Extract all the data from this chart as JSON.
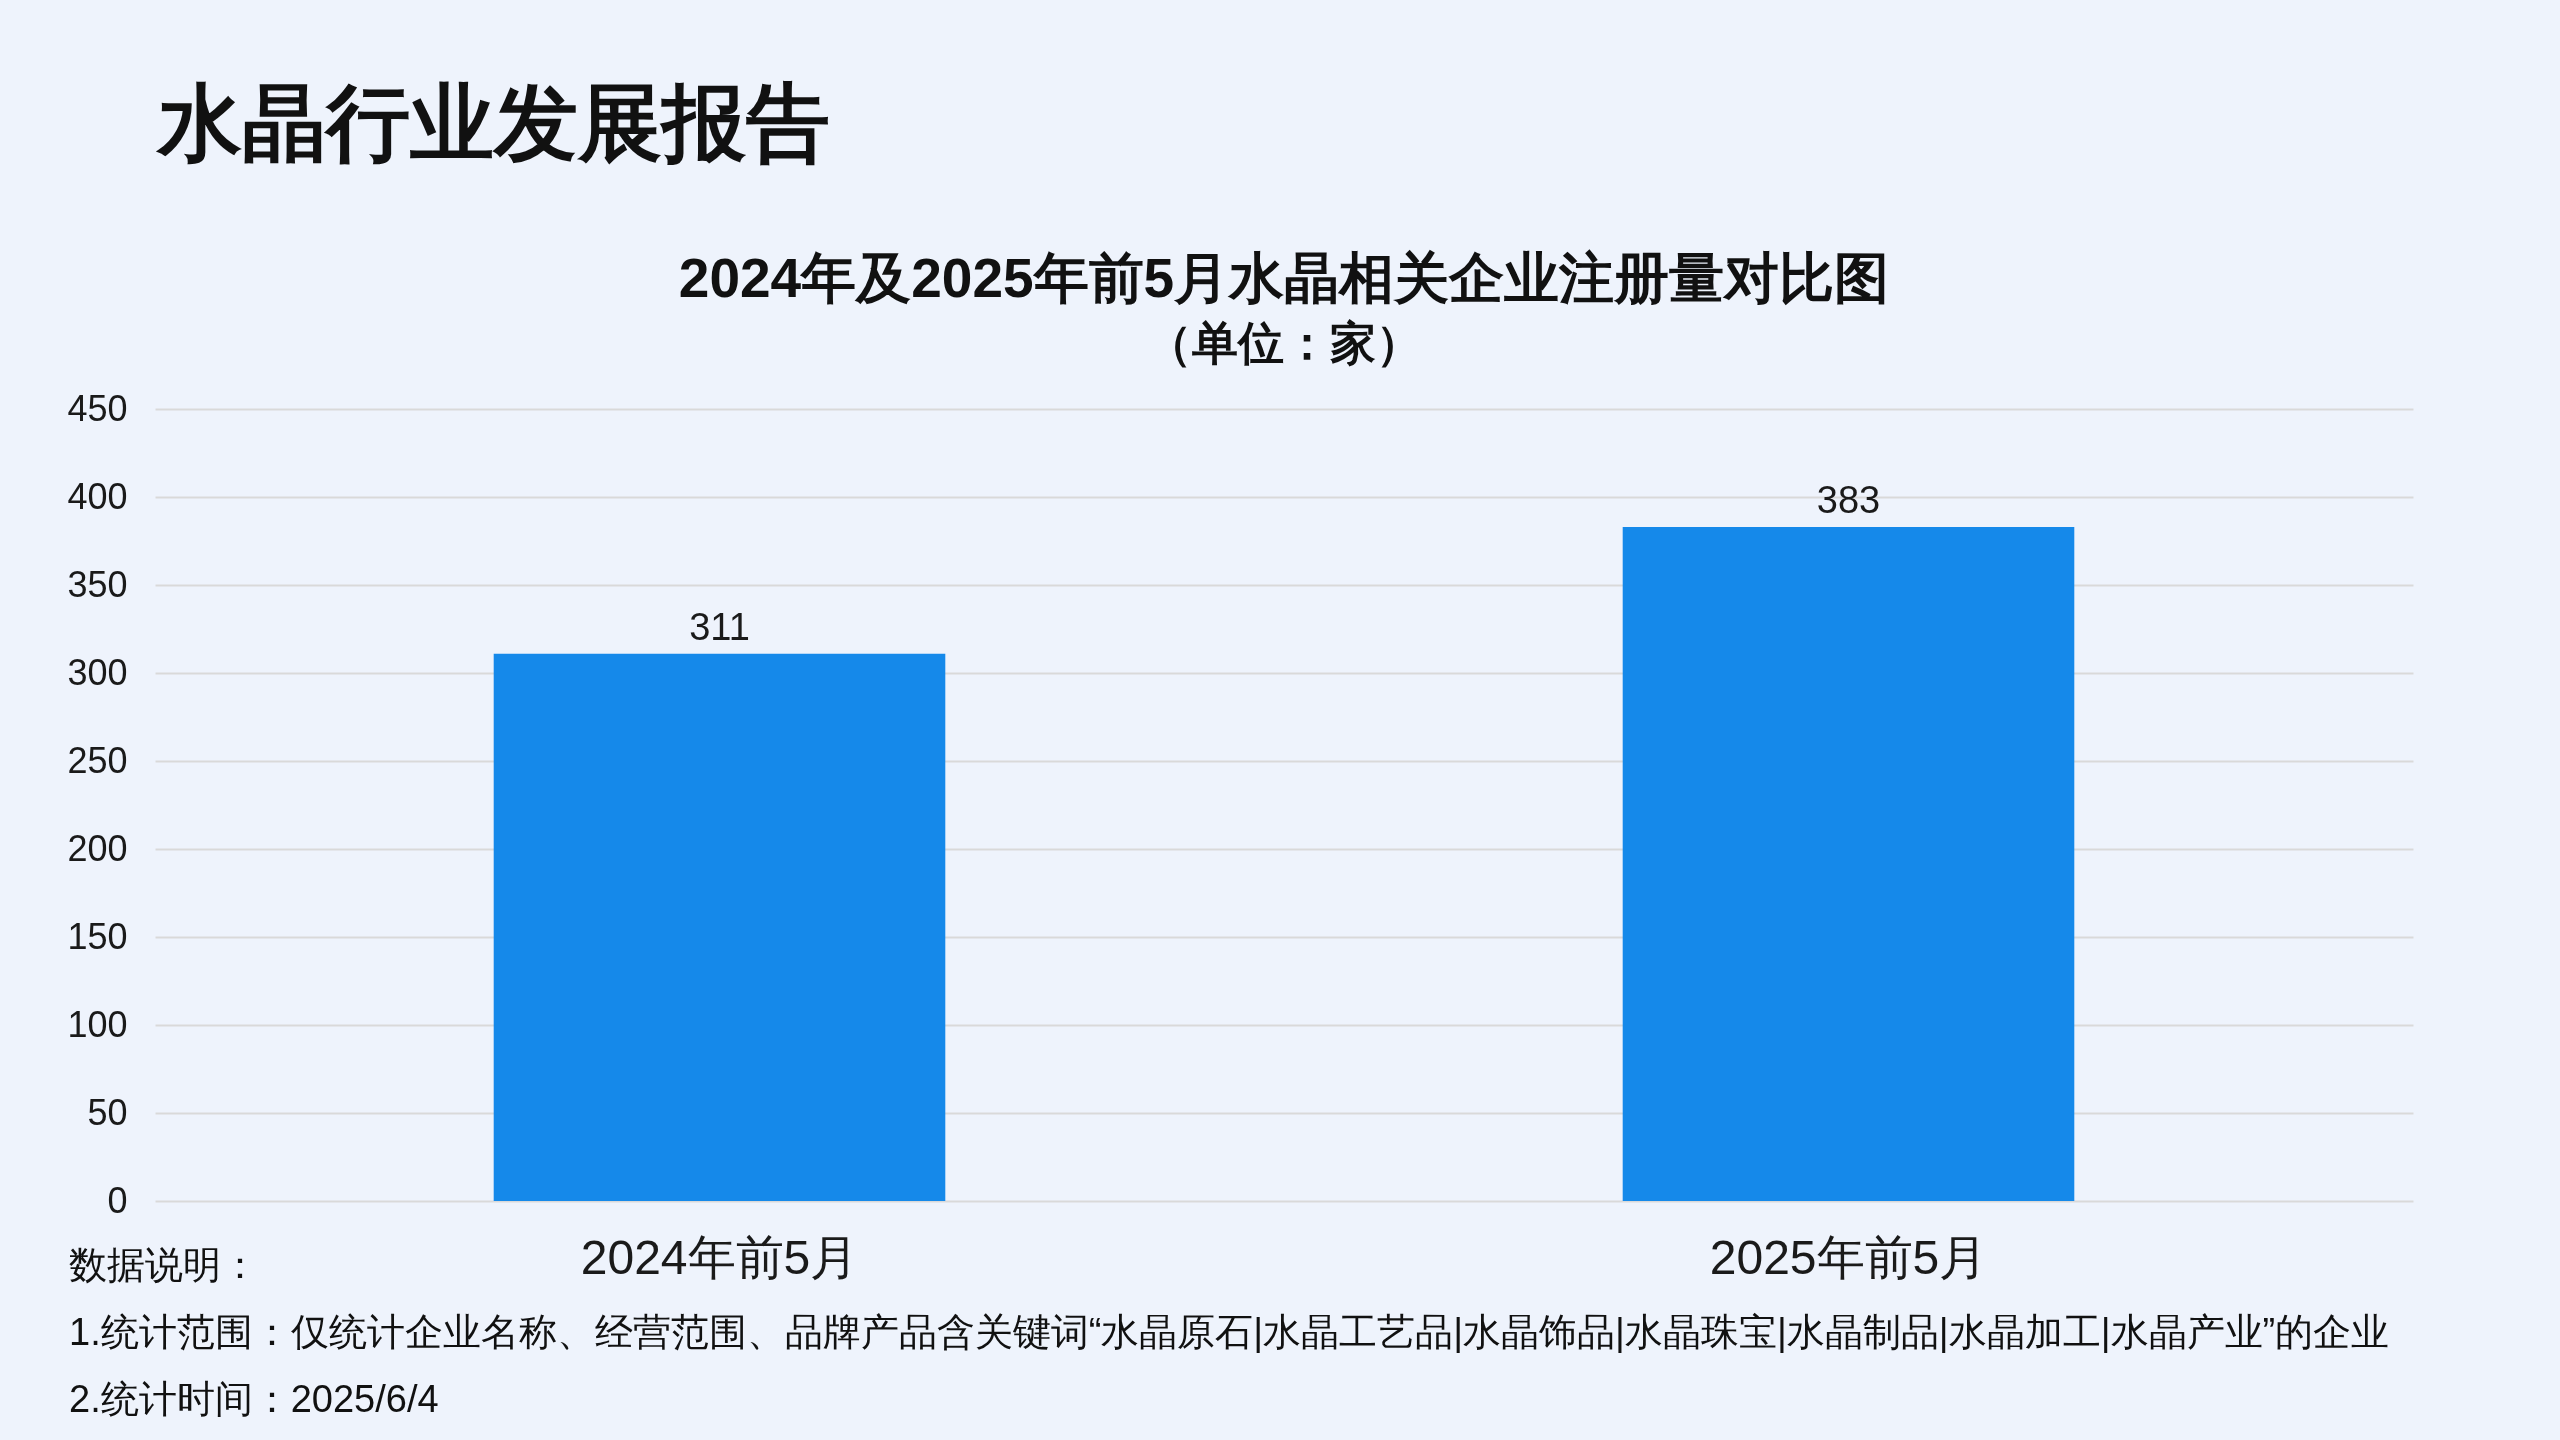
{
  "chart_data": {
    "type": "bar",
    "title": "2024年及2025年前5月水晶相关企业注册量对比图",
    "subtitle": "（单位：家）",
    "categories": [
      "2024年前5月",
      "2025年前5月"
    ],
    "values": [
      311,
      383
    ],
    "color": "#1589ea",
    "ylim": [
      0,
      450
    ],
    "yticks": [
      0,
      50,
      100,
      150,
      200,
      250,
      300,
      350,
      400,
      450
    ],
    "grid": "y",
    "data_labels": true,
    "annotations": [
      "水晶行业发展报告",
      "数据说明：",
      "1.统计范围：仅统计企业名称、经营范围、品牌产品含关键词“水晶原石|水晶工艺品|水晶饰品|水晶珠宝|水晶制品|水晶加工|水晶产业”的企业",
      "2.统计时间：2025/6/4"
    ]
  }
}
